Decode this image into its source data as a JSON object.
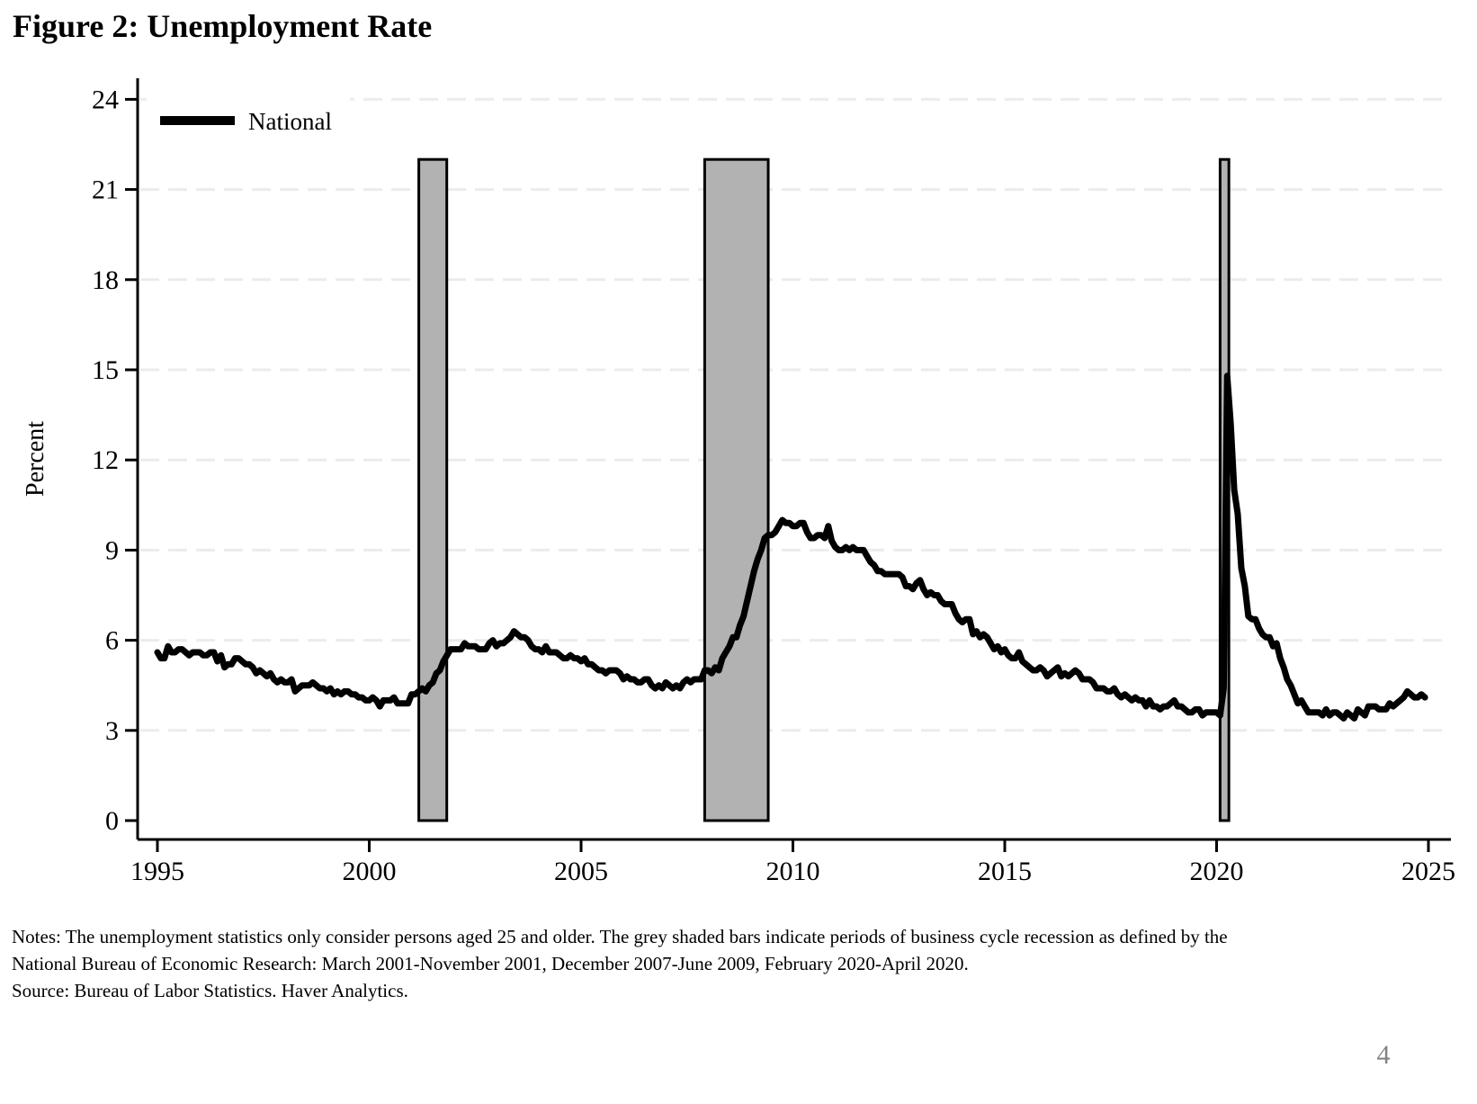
{
  "title": "Figure 2: Unemployment Rate",
  "page_number": "4",
  "notes_lines": [
    "Notes: The unemployment statistics only consider persons aged 25 and older. The grey shaded bars indicate periods of business cycle recession as defined by the",
    "National Bureau of Economic Research: March 2001-November 2001, December 2007-June 2009, February 2020-April 2020.",
    "Source: Bureau of Labor Statistics. Haver Analytics."
  ],
  "colors": {
    "series": "#000000",
    "recession_fill": "#b2b2b2",
    "recession_border": "#000000",
    "gridline": "#ececec",
    "axis": "#000000",
    "page_number": "#818589"
  },
  "chart_data": {
    "type": "line",
    "title": "Figure 2: Unemployment Rate",
    "xlabel": "",
    "ylabel": "Percent",
    "xlim": [
      1995,
      2025
    ],
    "ylim": [
      0,
      24
    ],
    "x_ticks": [
      1995,
      2000,
      2005,
      2010,
      2015,
      2020,
      2025
    ],
    "y_ticks": [
      0,
      3,
      6,
      9,
      12,
      15,
      18,
      21,
      24
    ],
    "grid": "horizontal-dashed",
    "legend": {
      "position": "top-left-inside",
      "entries": [
        {
          "label": "National",
          "color": "#000000"
        }
      ]
    },
    "recession_bands": [
      {
        "label": "March 2001-November 2001",
        "start": 2001.17,
        "end": 2001.83
      },
      {
        "label": "December 2007-June 2009",
        "start": 2007.917,
        "end": 2009.417
      },
      {
        "label": "February 2020-April 2020",
        "start": 2020.083,
        "end": 2020.29
      }
    ],
    "band_top": 22,
    "series": [
      {
        "name": "National",
        "color": "#000000",
        "frequency": "monthly",
        "start_year": 1995,
        "values": [
          5.6,
          5.4,
          5.4,
          5.8,
          5.6,
          5.6,
          5.7,
          5.7,
          5.6,
          5.5,
          5.6,
          5.6,
          5.6,
          5.5,
          5.5,
          5.6,
          5.6,
          5.3,
          5.5,
          5.1,
          5.2,
          5.2,
          5.4,
          5.4,
          5.3,
          5.2,
          5.2,
          5.1,
          4.9,
          5.0,
          4.9,
          4.8,
          4.9,
          4.7,
          4.6,
          4.7,
          4.6,
          4.6,
          4.7,
          4.3,
          4.4,
          4.5,
          4.5,
          4.5,
          4.6,
          4.5,
          4.4,
          4.4,
          4.3,
          4.4,
          4.2,
          4.3,
          4.2,
          4.3,
          4.3,
          4.2,
          4.2,
          4.1,
          4.1,
          4.0,
          4.0,
          4.1,
          4.0,
          3.8,
          4.0,
          4.0,
          4.0,
          4.1,
          3.9,
          3.9,
          3.9,
          3.9,
          4.2,
          4.2,
          4.3,
          4.4,
          4.3,
          4.5,
          4.6,
          4.9,
          5.0,
          5.3,
          5.5,
          5.7,
          5.7,
          5.7,
          5.7,
          5.9,
          5.8,
          5.8,
          5.8,
          5.7,
          5.7,
          5.7,
          5.9,
          6.0,
          5.8,
          5.9,
          5.9,
          6.0,
          6.1,
          6.3,
          6.2,
          6.1,
          6.1,
          6.0,
          5.8,
          5.7,
          5.7,
          5.6,
          5.8,
          5.6,
          5.6,
          5.6,
          5.5,
          5.4,
          5.4,
          5.5,
          5.4,
          5.4,
          5.3,
          5.4,
          5.2,
          5.2,
          5.1,
          5.0,
          5.0,
          4.9,
          5.0,
          5.0,
          5.0,
          4.9,
          4.7,
          4.8,
          4.7,
          4.7,
          4.6,
          4.6,
          4.7,
          4.7,
          4.5,
          4.4,
          4.5,
          4.4,
          4.6,
          4.5,
          4.4,
          4.5,
          4.4,
          4.6,
          4.7,
          4.6,
          4.7,
          4.7,
          4.7,
          5.0,
          5.0,
          4.9,
          5.1,
          5.0,
          5.4,
          5.6,
          5.8,
          6.1,
          6.1,
          6.5,
          6.8,
          7.3,
          7.8,
          8.3,
          8.7,
          9.0,
          9.4,
          9.5,
          9.5,
          9.6,
          9.8,
          10.0,
          9.9,
          9.9,
          9.8,
          9.8,
          9.9,
          9.9,
          9.6,
          9.4,
          9.4,
          9.5,
          9.5,
          9.4,
          9.8,
          9.3,
          9.1,
          9.0,
          9.0,
          9.1,
          9.0,
          9.1,
          9.0,
          9.0,
          9.0,
          8.8,
          8.6,
          8.5,
          8.3,
          8.3,
          8.2,
          8.2,
          8.2,
          8.2,
          8.2,
          8.1,
          7.8,
          7.8,
          7.7,
          7.9,
          8.0,
          7.7,
          7.5,
          7.6,
          7.5,
          7.5,
          7.3,
          7.2,
          7.2,
          7.2,
          6.9,
          6.7,
          6.6,
          6.7,
          6.7,
          6.2,
          6.3,
          6.1,
          6.2,
          6.1,
          5.9,
          5.7,
          5.8,
          5.6,
          5.7,
          5.5,
          5.4,
          5.4,
          5.6,
          5.3,
          5.2,
          5.1,
          5.0,
          5.0,
          5.1,
          5.0,
          4.8,
          4.9,
          5.0,
          5.1,
          4.8,
          4.9,
          4.8,
          4.9,
          5.0,
          4.9,
          4.7,
          4.7,
          4.7,
          4.6,
          4.4,
          4.4,
          4.4,
          4.3,
          4.3,
          4.4,
          4.2,
          4.1,
          4.2,
          4.1,
          4.0,
          4.1,
          4.0,
          4.0,
          3.8,
          4.0,
          3.8,
          3.8,
          3.7,
          3.8,
          3.8,
          3.9,
          4.0,
          3.8,
          3.8,
          3.7,
          3.6,
          3.6,
          3.7,
          3.7,
          3.5,
          3.6,
          3.6,
          3.6,
          3.6,
          3.5,
          4.4,
          14.8,
          13.2,
          11.0,
          10.2,
          8.4,
          7.8,
          6.8,
          6.7,
          6.7,
          6.4,
          6.2,
          6.1,
          6.1,
          5.8,
          5.9,
          5.4,
          5.1,
          4.7,
          4.5,
          4.2,
          3.9,
          4.0,
          3.8,
          3.6,
          3.6,
          3.6,
          3.6,
          3.5,
          3.7,
          3.5,
          3.6,
          3.6,
          3.5,
          3.4,
          3.6,
          3.5,
          3.4,
          3.7,
          3.6,
          3.5,
          3.8,
          3.8,
          3.8,
          3.7,
          3.7,
          3.7,
          3.9,
          3.8,
          3.9,
          4.0,
          4.1,
          4.3,
          4.2,
          4.1,
          4.1,
          4.2,
          4.1
        ]
      }
    ]
  }
}
